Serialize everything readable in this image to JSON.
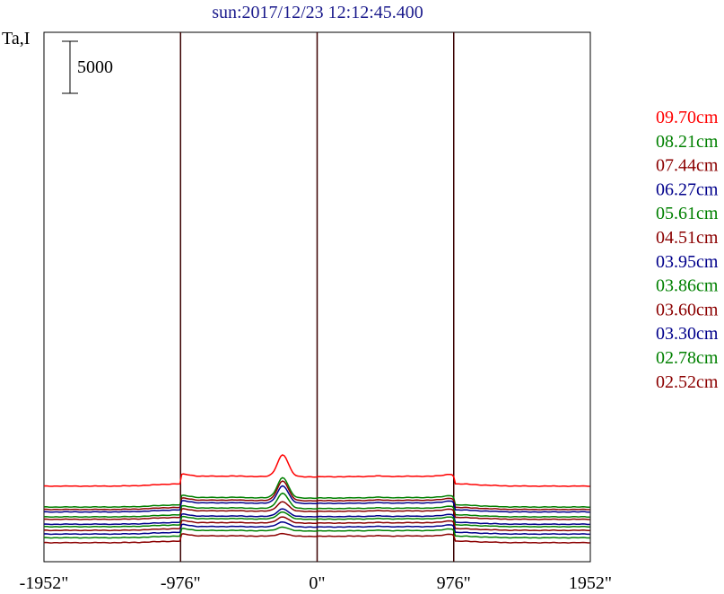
{
  "chart_data": {
    "type": "line",
    "title": "sun:2017/12/23 12:12:45.400",
    "ylabel": "Ta,I",
    "xlim": [
      -1952,
      1952
    ],
    "x_ticks": [
      {
        "value": -1952,
        "label": "-1952\""
      },
      {
        "value": -976,
        "label": "-976\""
      },
      {
        "value": 0,
        "label": "0\""
      },
      {
        "value": 976,
        "label": "976\""
      },
      {
        "value": 1952,
        "label": "1952\""
      }
    ],
    "vertical_lines": [
      -976,
      0,
      976
    ],
    "scale_bar": {
      "value": 5000,
      "label": "5000"
    },
    "series": [
      {
        "name": "09.70cm",
        "color": "#ff0000",
        "baseline": 52,
        "disk": 8.2,
        "limb": 1.3,
        "peak": 17.8
      },
      {
        "name": "08.21cm",
        "color": "#008000",
        "baseline": 35,
        "disk": 7.9,
        "limb": 1.3,
        "peak": 16.5
      },
      {
        "name": "07.44cm",
        "color": "#8b0000",
        "baseline": 33,
        "disk": 7.7,
        "limb": 1.3,
        "peak": 16.0
      },
      {
        "name": "06.27cm",
        "color": "#00008b",
        "baseline": 31,
        "disk": 7.5,
        "limb": 1.3,
        "peak": 14.2
      },
      {
        "name": "05.61cm",
        "color": "#008000",
        "baseline": 27,
        "disk": 7.3,
        "limb": 1.3,
        "peak": 12.4
      },
      {
        "name": "04.51cm",
        "color": "#8b0000",
        "baseline": 25,
        "disk": 7.0,
        "limb": 1.2,
        "peak": 7.8
      },
      {
        "name": "03.95cm",
        "color": "#00008b",
        "baseline": 21,
        "disk": 6.7,
        "limb": 1.2,
        "peak": 6.3
      },
      {
        "name": "03.86cm",
        "color": "#008000",
        "baseline": 19,
        "disk": 6.6,
        "limb": 1.2,
        "peak": 5.8
      },
      {
        "name": "03.60cm",
        "color": "#8b0000",
        "baseline": 16,
        "disk": 6.4,
        "limb": 1.2,
        "peak": 5.0
      },
      {
        "name": "03.30cm",
        "color": "#00008b",
        "baseline": 13,
        "disk": 6.2,
        "limb": 1.2,
        "peak": 4.1
      },
      {
        "name": "02.78cm",
        "color": "#008000",
        "baseline": 10,
        "disk": 6.0,
        "limb": 1.1,
        "peak": 3.1
      },
      {
        "name": "02.52cm",
        "color": "#8b0000",
        "baseline": 6,
        "disk": 5.6,
        "limb": 1.1,
        "peak": 2.2
      }
    ]
  }
}
